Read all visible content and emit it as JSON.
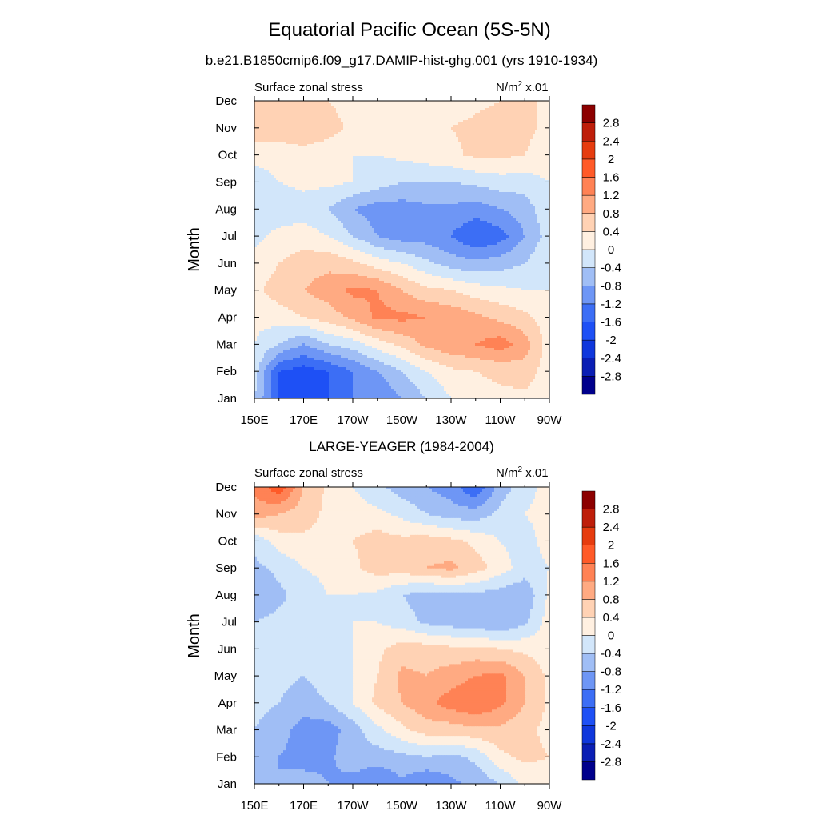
{
  "figure": {
    "title": "Equatorial Pacific Ocean (5S-5N)"
  },
  "contour_levels": [
    -2.8,
    -2.4,
    -2.0,
    -1.6,
    -1.2,
    -0.8,
    -0.4,
    0.0,
    0.4,
    0.8,
    1.2,
    1.6,
    2.0,
    2.4,
    2.8
  ],
  "colorbar": {
    "colors": [
      "#00008c",
      "#0a1eb4",
      "#0f37dc",
      "#1e50f5",
      "#3c6ef5",
      "#6e96f5",
      "#a0bef5",
      "#d2e6fa",
      "#fff0e1",
      "#ffd2b4",
      "#ffaa82",
      "#ff8255",
      "#ff5a28",
      "#e63c0f",
      "#be1e0a",
      "#8c0000"
    ],
    "labels": [
      "-2.8",
      "-2.4",
      "-2",
      "-1.6",
      "-1.2",
      "-0.8",
      "-0.4",
      "0",
      "0.4",
      "0.8",
      "1.2",
      "1.6",
      "2",
      "2.4",
      "2.8"
    ]
  },
  "chart_data": [
    {
      "type": "heatmap",
      "title": "b.e21.B1850cmip6.f09_g17.DAMIP-hist-ghg.001 (yrs 1910-1934)",
      "left_label": "Surface zonal stress",
      "right_label": "N/m",
      "units_sup": "2",
      "units_suffix": " x.01",
      "xlabel": "",
      "ylabel": "Month",
      "x_tick_labels": [
        "150E",
        "170E",
        "170W",
        "150W",
        "130W",
        "110W",
        "90W"
      ],
      "y_tick_labels": [
        "Jan",
        "Feb",
        "Mar",
        "Apr",
        "May",
        "Jun",
        "Jul",
        "Aug",
        "Sep",
        "Oct",
        "Nov",
        "Dec"
      ],
      "x_values": [
        150,
        160,
        170,
        180,
        190,
        200,
        210,
        220,
        230,
        240,
        250,
        260,
        270
      ],
      "y_values": [
        1,
        2,
        3,
        4,
        5,
        6,
        7,
        8,
        9,
        10,
        11,
        12
      ],
      "z": [
        [
          -0.4,
          -1.6,
          -2.0,
          -1.6,
          -1.2,
          -1.2,
          -0.8,
          -0.4,
          0.0,
          0.2,
          0.3,
          0.3,
          0.2
        ],
        [
          -0.2,
          -1.6,
          -1.8,
          -1.6,
          -1.2,
          -0.8,
          -0.4,
          0.0,
          0.3,
          0.4,
          0.5,
          0.6,
          0.2
        ],
        [
          0.0,
          -0.4,
          -0.8,
          -0.4,
          -0.2,
          0.2,
          0.5,
          0.9,
          1.1,
          1.2,
          1.4,
          1.0,
          0.2
        ],
        [
          0.1,
          0.2,
          0.4,
          0.6,
          0.9,
          1.3,
          1.3,
          1.2,
          1.1,
          0.9,
          0.7,
          0.5,
          0.2
        ],
        [
          0.3,
          0.6,
          0.8,
          1.0,
          1.3,
          1.2,
          0.8,
          0.5,
          0.4,
          0.2,
          0.1,
          0.0,
          0.0
        ],
        [
          0.1,
          0.4,
          0.6,
          0.7,
          0.5,
          0.2,
          0.0,
          -0.3,
          -0.6,
          -0.7,
          -0.6,
          -0.4,
          0.0
        ],
        [
          -0.1,
          0.1,
          0.2,
          0.0,
          -0.4,
          -0.8,
          -1.0,
          -1.0,
          -1.2,
          -1.6,
          -1.4,
          -0.8,
          -0.2
        ],
        [
          -0.3,
          -0.2,
          -0.2,
          -0.4,
          -0.8,
          -1.0,
          -1.0,
          -0.9,
          -0.9,
          -1.0,
          -0.8,
          -0.6,
          -0.1
        ],
        [
          -0.3,
          0.0,
          0.1,
          0.1,
          0.0,
          -0.2,
          -0.4,
          -0.4,
          -0.4,
          -0.3,
          -0.2,
          -0.2,
          0.0
        ],
        [
          0.2,
          0.2,
          0.2,
          0.1,
          0.0,
          0.0,
          0.1,
          0.2,
          0.3,
          0.5,
          0.5,
          0.4,
          0.2
        ],
        [
          0.6,
          0.6,
          0.8,
          0.6,
          0.3,
          0.2,
          0.2,
          0.3,
          0.4,
          0.5,
          0.6,
          0.5,
          0.3
        ],
        [
          0.4,
          0.4,
          0.4,
          0.4,
          0.2,
          0.1,
          0.0,
          0.1,
          0.2,
          0.3,
          0.4,
          0.5,
          0.3
        ]
      ]
    },
    {
      "type": "heatmap",
      "title": "LARGE-YEAGER (1984-2004)",
      "left_label": "Surface zonal stress",
      "right_label": "N/m",
      "units_sup": "2",
      "units_suffix": " x.01",
      "xlabel": "",
      "ylabel": "Month",
      "x_tick_labels": [
        "150E",
        "170E",
        "170W",
        "150W",
        "130W",
        "110W",
        "90W"
      ],
      "y_tick_labels": [
        "Jan",
        "Feb",
        "Mar",
        "Apr",
        "May",
        "Jun",
        "Jul",
        "Aug",
        "Sep",
        "Oct",
        "Nov",
        "Dec"
      ],
      "x_values": [
        150,
        160,
        170,
        180,
        190,
        200,
        210,
        220,
        230,
        240,
        250,
        260,
        270
      ],
      "y_values": [
        1,
        2,
        3,
        4,
        5,
        6,
        7,
        8,
        9,
        10,
        11,
        12
      ],
      "z": [
        [
          -0.4,
          -0.8,
          -0.6,
          -0.8,
          -1.0,
          -1.2,
          -0.9,
          -1.2,
          -0.9,
          -0.7,
          -0.4,
          0.1,
          0.2
        ],
        [
          -0.4,
          -0.8,
          -1.0,
          -0.9,
          -0.5,
          -0.6,
          -0.5,
          -0.4,
          -0.5,
          -0.3,
          0.3,
          0.5,
          0.4
        ],
        [
          -0.4,
          -0.6,
          -1.0,
          -1.0,
          -0.6,
          -0.1,
          0.3,
          0.6,
          0.6,
          0.7,
          0.7,
          0.5,
          0.3
        ],
        [
          -0.3,
          -0.4,
          -0.6,
          -0.4,
          0.0,
          0.5,
          0.8,
          1.1,
          1.4,
          1.6,
          1.3,
          0.8,
          0.3
        ],
        [
          -0.2,
          -0.3,
          -0.4,
          -0.2,
          0.0,
          0.4,
          0.9,
          0.8,
          1.0,
          1.2,
          1.3,
          0.8,
          0.3
        ],
        [
          -0.2,
          -0.3,
          -0.2,
          -0.1,
          0.0,
          0.3,
          0.6,
          0.6,
          0.5,
          0.5,
          0.4,
          0.3,
          0.2
        ],
        [
          -0.4,
          -0.3,
          -0.2,
          -0.1,
          0.0,
          0.0,
          -0.2,
          -0.5,
          -0.6,
          -0.7,
          -0.8,
          -0.5,
          0.2
        ],
        [
          -0.7,
          -0.5,
          -0.2,
          0.0,
          0.0,
          -0.1,
          -0.4,
          -0.6,
          -0.5,
          -0.5,
          -0.6,
          -0.7,
          0.1
        ],
        [
          -0.5,
          -0.3,
          0.0,
          0.1,
          0.3,
          0.6,
          0.6,
          0.8,
          0.9,
          0.6,
          0.2,
          -0.2,
          0.0
        ],
        [
          -0.3,
          0.2,
          0.3,
          0.3,
          0.4,
          0.6,
          0.5,
          0.6,
          0.5,
          0.3,
          0.0,
          -0.2,
          0.2
        ],
        [
          1.0,
          0.8,
          0.6,
          0.3,
          0.2,
          0.1,
          -0.1,
          -0.4,
          -0.6,
          -0.6,
          -0.3,
          0.0,
          0.2
        ],
        [
          1.3,
          1.9,
          0.8,
          0.3,
          0.0,
          -0.3,
          -0.6,
          -0.8,
          -1.0,
          -1.6,
          -0.6,
          -0.2,
          0.2
        ]
      ]
    }
  ]
}
